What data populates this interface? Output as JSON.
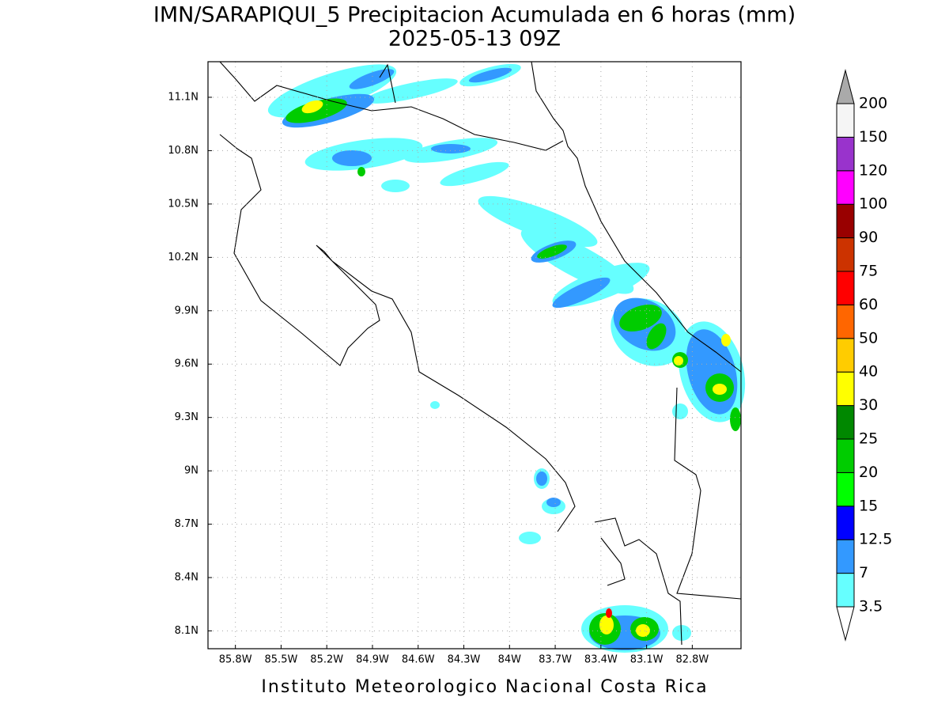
{
  "map": {
    "title": "IMN/SARAPIQUI_5 Precipitacion Acumulada en 6 horas (mm)",
    "subtitle": "2025-05-13 09Z",
    "footer": "Instituto Meteorologico Nacional Costa Rica",
    "xlim": [
      -85.98,
      -82.48
    ],
    "ylim": [
      8.0,
      11.3
    ],
    "xticks": [
      {
        "value": -85.8,
        "label": "85.8W"
      },
      {
        "value": -85.5,
        "label": "85.5W"
      },
      {
        "value": -85.2,
        "label": "85.2W"
      },
      {
        "value": -84.9,
        "label": "84.9W"
      },
      {
        "value": -84.6,
        "label": "84.6W"
      },
      {
        "value": -84.3,
        "label": "84.3W"
      },
      {
        "value": -84.0,
        "label": "84W"
      },
      {
        "value": -83.7,
        "label": "83.7W"
      },
      {
        "value": -83.4,
        "label": "83.4W"
      },
      {
        "value": -83.1,
        "label": "83.1W"
      },
      {
        "value": -82.8,
        "label": "82.8W"
      }
    ],
    "yticks": [
      {
        "value": 8.1,
        "label": "8.1N"
      },
      {
        "value": 8.4,
        "label": "8.4N"
      },
      {
        "value": 8.7,
        "label": "8.7N"
      },
      {
        "value": 9.0,
        "label": "9N"
      },
      {
        "value": 9.3,
        "label": "9.3N"
      },
      {
        "value": 9.6,
        "label": "9.6N"
      },
      {
        "value": 9.9,
        "label": "9.9N"
      },
      {
        "value": 10.2,
        "label": "10.2N"
      },
      {
        "value": 10.5,
        "label": "10.5N"
      },
      {
        "value": 10.8,
        "label": "10.8N"
      },
      {
        "value": 11.1,
        "label": "11.1N"
      }
    ],
    "grid": true,
    "colorbar": {
      "levels": [
        3.5,
        7,
        12.5,
        15,
        20,
        25,
        30,
        40,
        50,
        60,
        75,
        90,
        100,
        120,
        150,
        200
      ],
      "colors": [
        "#66ffff",
        "#3399ff",
        "#0000ff",
        "#00ff00",
        "#00cc00",
        "#008800",
        "#ffff00",
        "#ffcc00",
        "#ff6600",
        "#ff0000",
        "#cc3300",
        "#990000",
        "#ff00ff",
        "#9933cc",
        "#f5f5f5"
      ],
      "below_color": "#ffffff",
      "above_color": "#aaaaaa"
    }
  }
}
